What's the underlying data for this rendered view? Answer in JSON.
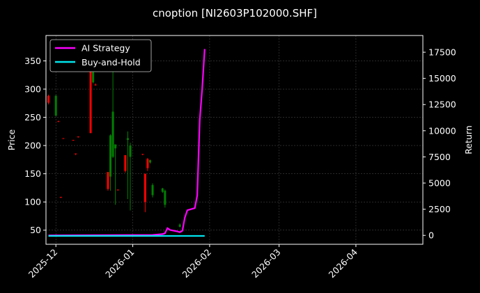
{
  "chart_data": {
    "type": "candlestick+line",
    "title": "cnoption [NI2603P102000.SHF]",
    "ylabel_left": "Price",
    "ylabel_right": "Return",
    "xlabel": "",
    "x_ticks": [
      "2025-12",
      "2026-01",
      "2026-02",
      "2026-03",
      "2026-04"
    ],
    "xlim": [
      "2025-11-27",
      "2026-04-28"
    ],
    "y_left_ticks": [
      50,
      100,
      150,
      200,
      250,
      300,
      350
    ],
    "ylim_left": [
      25,
      395
    ],
    "y_right_ticks": [
      0,
      2500,
      5000,
      7500,
      10000,
      12500,
      15000,
      17500
    ],
    "ylim_right": [
      -850,
      19100
    ],
    "grid": true,
    "legend_position": "top-left",
    "legend": [
      "AI Strategy",
      "Buy-and-Hold"
    ],
    "colors": {
      "up": "#008000",
      "down": "#ff0000",
      "ai": "#ff00ff",
      "bh": "#00e5ee",
      "grid": "#444444"
    },
    "candles": [
      {
        "date": "2025-11-28",
        "open": 288,
        "high": 290,
        "low": 273,
        "close": 276
      },
      {
        "date": "2025-12-01",
        "open": 253,
        "high": 290,
        "low": 252,
        "close": 288
      },
      {
        "date": "2025-12-02",
        "open": 243,
        "high": 244,
        "low": 242,
        "close": 242
      },
      {
        "date": "2025-12-03",
        "open": 109,
        "high": 109,
        "low": 107,
        "close": 108
      },
      {
        "date": "2025-12-04",
        "open": 213,
        "high": 213,
        "low": 212,
        "close": 212
      },
      {
        "date": "2025-12-08",
        "open": 210,
        "high": 210,
        "low": 209,
        "close": 209
      },
      {
        "date": "2025-12-09",
        "open": 186,
        "high": 186,
        "low": 183,
        "close": 185
      },
      {
        "date": "2025-12-10",
        "open": 216,
        "high": 216,
        "low": 214,
        "close": 215
      },
      {
        "date": "2025-12-15",
        "open": 380,
        "high": 380,
        "low": 222,
        "close": 222
      },
      {
        "date": "2025-12-16",
        "open": 312,
        "high": 340,
        "low": 310,
        "close": 330
      },
      {
        "date": "2025-12-17",
        "open": 308,
        "high": 310,
        "low": 306,
        "close": 307
      },
      {
        "date": "2025-12-22",
        "open": 153,
        "high": 153,
        "low": 120,
        "close": 123
      },
      {
        "date": "2025-12-23",
        "open": 145,
        "high": 220,
        "low": 120,
        "close": 218
      },
      {
        "date": "2025-12-24",
        "open": 180,
        "high": 340,
        "low": 178,
        "close": 260
      },
      {
        "date": "2025-12-25",
        "open": 195,
        "high": 200,
        "low": 95,
        "close": 202
      },
      {
        "date": "2025-12-26",
        "open": 122,
        "high": 122,
        "low": 120,
        "close": 121
      },
      {
        "date": "2025-12-29",
        "open": 183,
        "high": 183,
        "low": 152,
        "close": 155
      },
      {
        "date": "2025-12-30",
        "open": 210,
        "high": 225,
        "low": 105,
        "close": 213
      },
      {
        "date": "2025-12-31",
        "open": 180,
        "high": 205,
        "low": 85,
        "close": 200
      },
      {
        "date": "2026-01-05",
        "open": 185,
        "high": 185,
        "low": 183,
        "close": 184
      },
      {
        "date": "2026-01-06",
        "open": 150,
        "high": 150,
        "low": 82,
        "close": 100
      },
      {
        "date": "2026-01-07",
        "open": 176,
        "high": 178,
        "low": 155,
        "close": 160
      },
      {
        "date": "2026-01-08",
        "open": 170,
        "high": 175,
        "low": 168,
        "close": 174
      },
      {
        "date": "2026-01-09",
        "open": 112,
        "high": 133,
        "low": 108,
        "close": 130
      },
      {
        "date": "2026-01-13",
        "open": 118,
        "high": 125,
        "low": 116,
        "close": 124
      },
      {
        "date": "2026-01-14",
        "open": 95,
        "high": 122,
        "low": 90,
        "close": 120
      },
      {
        "date": "2026-01-20",
        "open": 56,
        "high": 62,
        "low": 55,
        "close": 60
      }
    ],
    "series": [
      {
        "name": "AI Strategy",
        "x": [
          "2025-11-28",
          "2026-01-09",
          "2026-01-13",
          "2026-01-14",
          "2026-01-15",
          "2026-01-16",
          "2026-01-19",
          "2026-01-20",
          "2026-01-21",
          "2026-01-22",
          "2026-01-23",
          "2026-01-26",
          "2026-01-27",
          "2026-01-28",
          "2026-01-29",
          "2026-01-30"
        ],
        "y": [
          0,
          40,
          120,
          200,
          700,
          520,
          380,
          300,
          450,
          1700,
          2400,
          2600,
          3800,
          11000,
          14000,
          17800
        ]
      },
      {
        "name": "Buy-and-Hold",
        "x": [
          "2025-11-28",
          "2026-01-30"
        ],
        "y": [
          -50,
          -50
        ]
      }
    ]
  }
}
